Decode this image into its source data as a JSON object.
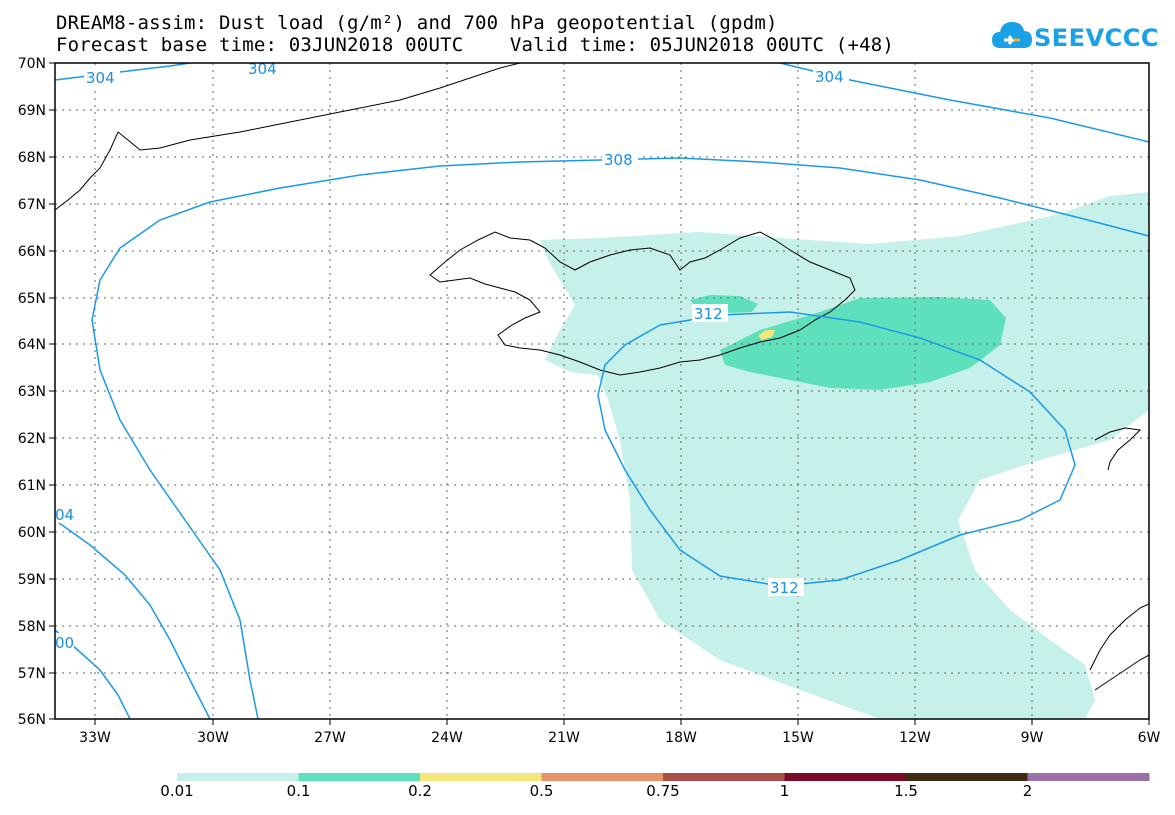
{
  "title_line1": "DREAM8-assim: Dust load (g/m²) and 700 hPa geopotential (gpdm)",
  "title_line2": "Forecast base time: 03JUN2018 00UTC    Valid time: 05JUN2018 00UTC (+48)",
  "logo_text": "SEEVCCC",
  "lat_labels": [
    "70N",
    "69N",
    "68N",
    "67N",
    "66N",
    "65N",
    "64N",
    "63N",
    "62N",
    "61N",
    "60N",
    "59N",
    "58N",
    "57N",
    "56N"
  ],
  "lon_labels": [
    "33W",
    "30W",
    "27W",
    "24W",
    "21W",
    "18W",
    "15W",
    "12W",
    "9W",
    "6W"
  ],
  "contour_labels": {
    "c304_left": "304",
    "c304_top": "304",
    "c304_right": "304",
    "c308": "308",
    "c312_top": "312",
    "c312_bottom": "312",
    "c304_sw": "04",
    "c300_sw": "00"
  },
  "colorbar": {
    "labels": [
      "0.01",
      "0.1",
      "0.2",
      "0.5",
      "0.75",
      "1",
      "1.5",
      "2"
    ],
    "colors": [
      "#c6f0ea",
      "#5ee0bc",
      "#f5e67a",
      "#e8946a",
      "#a84f4a",
      "#7a0a2a",
      "#3f2a12",
      "#9b6fa8"
    ]
  },
  "colors": {
    "contour": "#1a9ae6",
    "dust_low": "#c6f0ea",
    "dust_mid": "#5ee0bc",
    "dust_high": "#f5e67a",
    "grid": "#666666"
  }
}
